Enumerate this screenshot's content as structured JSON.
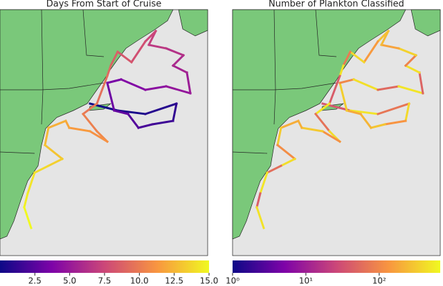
{
  "panels": [
    {
      "title": "Days From Start of Cruise",
      "colorbar": {
        "scale": "linear",
        "colormap": "plasma",
        "clim": [
          0,
          15
        ],
        "ticks": [
          2.5,
          {
            "value": 5,
            "label": "5.0"
          },
          7.5,
          {
            "value": 10,
            "label": "10.0"
          },
          12.5,
          {
            "value": 15,
            "label": "15.0"
          }
        ]
      }
    },
    {
      "title": "Number of Plankton Classified",
      "colorbar": {
        "scale": "log",
        "colormap": "plasma",
        "clim": [
          1,
          680
        ],
        "ticks": [
          {
            "value": 1,
            "label": "10⁰"
          },
          {
            "value": 10,
            "label": "10¹"
          },
          {
            "value": 100,
            "label": "10²"
          }
        ]
      }
    }
  ]
}
